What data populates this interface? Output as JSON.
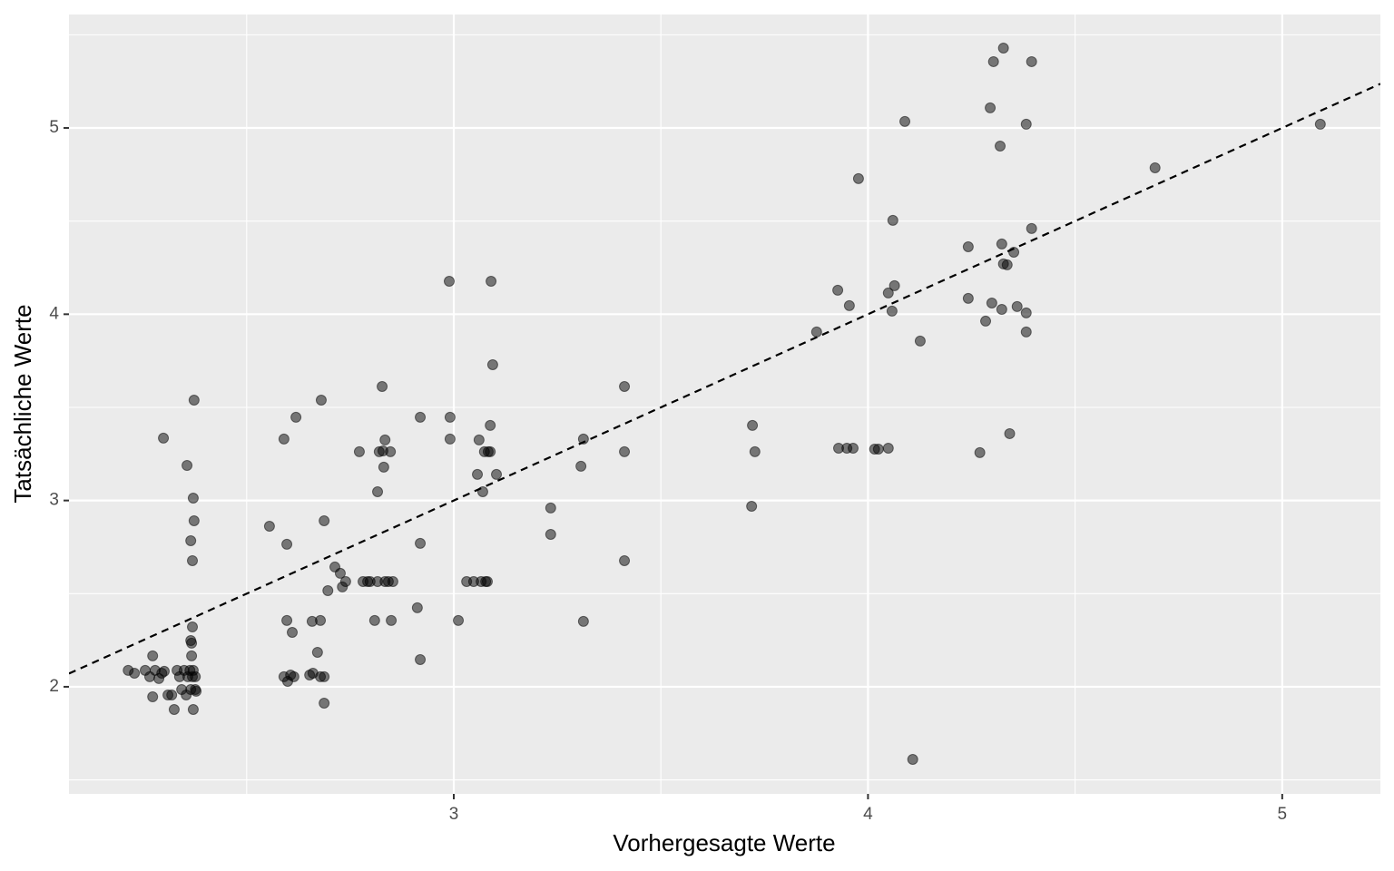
{
  "chart_data": {
    "type": "scatter",
    "x_label": "Vorhergesagte Werte",
    "y_label": "Tatsächliche Werte",
    "xlim": [
      2.071,
      5.237
    ],
    "ylim": [
      1.425,
      5.609
    ],
    "xticks": [
      3,
      4,
      5
    ],
    "yticks": [
      2,
      3,
      4,
      5
    ],
    "minor_xticks": [
      2.5,
      3.5,
      4.5
    ],
    "minor_yticks": [
      1.5,
      2.5,
      3.5,
      4.5,
      5.5
    ],
    "grid": true,
    "color": "#000000",
    "opacity": 0.5,
    "reference_line": {
      "slope": 1,
      "intercept": 0,
      "dash": true
    },
    "x": [
      2.214,
      2.229,
      2.255,
      2.266,
      2.273,
      2.273,
      2.279,
      2.288,
      2.295,
      2.301,
      2.31,
      2.319,
      2.325,
      2.332,
      2.338,
      2.343,
      2.349,
      2.354,
      2.358,
      2.363,
      2.365,
      2.369,
      2.371,
      2.376,
      2.376,
      2.378,
      2.367,
      2.367,
      2.369,
      2.365,
      2.356,
      2.371,
      2.373,
      2.365,
      2.369,
      2.373,
      2.299,
      2.371,
      2.555,
      2.59,
      2.597,
      2.597,
      2.61,
      2.619,
      2.59,
      2.599,
      2.606,
      2.614,
      2.652,
      2.66,
      2.678,
      2.687,
      2.687,
      2.658,
      2.678,
      2.671,
      2.68,
      2.687,
      2.696,
      2.713,
      2.726,
      2.731,
      2.739,
      2.772,
      2.781,
      2.792,
      2.798,
      2.809,
      2.816,
      2.816,
      2.82,
      2.827,
      2.829,
      2.831,
      2.834,
      2.834,
      2.842,
      2.847,
      2.849,
      2.853,
      2.912,
      2.919,
      2.919,
      2.919,
      2.989,
      2.991,
      2.991,
      3.011,
      3.031,
      3.048,
      3.057,
      3.061,
      3.066,
      3.07,
      3.074,
      3.077,
      3.081,
      3.083,
      3.088,
      3.09,
      3.094,
      3.103,
      3.088,
      3.234,
      3.234,
      3.307,
      3.313,
      3.313,
      3.412,
      3.412,
      3.412,
      3.721,
      3.727,
      3.719,
      3.876,
      3.927,
      3.955,
      3.929,
      3.949,
      3.964,
      3.977,
      4.016,
      4.025,
      4.049,
      4.049,
      4.058,
      4.06,
      4.064,
      4.089,
      4.108,
      4.126,
      4.242,
      4.242,
      4.27,
      4.284,
      4.295,
      4.299,
      4.303,
      4.319,
      4.323,
      4.323,
      4.327,
      4.327,
      4.336,
      4.342,
      4.352,
      4.36,
      4.382,
      4.382,
      4.382,
      4.395,
      4.395,
      4.693,
      5.092
    ],
    "y": [
      2.088,
      2.073,
      2.088,
      2.054,
      2.166,
      1.946,
      2.088,
      2.044,
      2.073,
      2.083,
      1.956,
      1.956,
      1.878,
      2.088,
      2.054,
      1.985,
      2.088,
      1.956,
      2.054,
      2.088,
      1.985,
      2.054,
      2.088,
      2.054,
      1.985,
      1.976,
      2.166,
      2.234,
      2.321,
      2.248,
      3.188,
      3.013,
      2.891,
      2.784,
      2.677,
      3.539,
      3.335,
      1.878,
      2.862,
      3.33,
      2.765,
      2.356,
      2.292,
      3.447,
      2.054,
      2.029,
      2.063,
      2.054,
      2.063,
      2.073,
      2.054,
      2.054,
      1.912,
      2.351,
      2.356,
      2.185,
      3.539,
      2.891,
      2.516,
      2.643,
      2.609,
      2.536,
      2.565,
      3.262,
      2.565,
      2.565,
      2.565,
      2.356,
      3.047,
      2.565,
      3.262,
      3.612,
      3.266,
      3.179,
      3.325,
      2.565,
      2.565,
      3.262,
      2.356,
      2.565,
      2.424,
      2.146,
      3.447,
      2.77,
      4.177,
      3.447,
      3.33,
      2.356,
      2.565,
      2.565,
      3.14,
      3.325,
      2.565,
      3.047,
      3.262,
      2.565,
      2.565,
      3.262,
      3.403,
      4.177,
      3.729,
      3.14,
      3.262,
      2.96,
      2.818,
      3.184,
      3.33,
      2.351,
      3.612,
      3.262,
      2.677,
      3.403,
      3.262,
      2.969,
      3.905,
      4.129,
      4.046,
      3.281,
      3.281,
      3.281,
      4.728,
      3.276,
      3.276,
      3.281,
      4.114,
      4.017,
      4.504,
      4.153,
      5.035,
      1.61,
      3.856,
      4.362,
      4.085,
      3.257,
      3.963,
      5.108,
      4.06,
      5.356,
      4.903,
      4.377,
      4.026,
      5.429,
      4.27,
      4.265,
      3.359,
      4.333,
      4.041,
      5.02,
      4.007,
      3.905,
      4.46,
      5.356,
      4.786,
      5.02
    ]
  }
}
